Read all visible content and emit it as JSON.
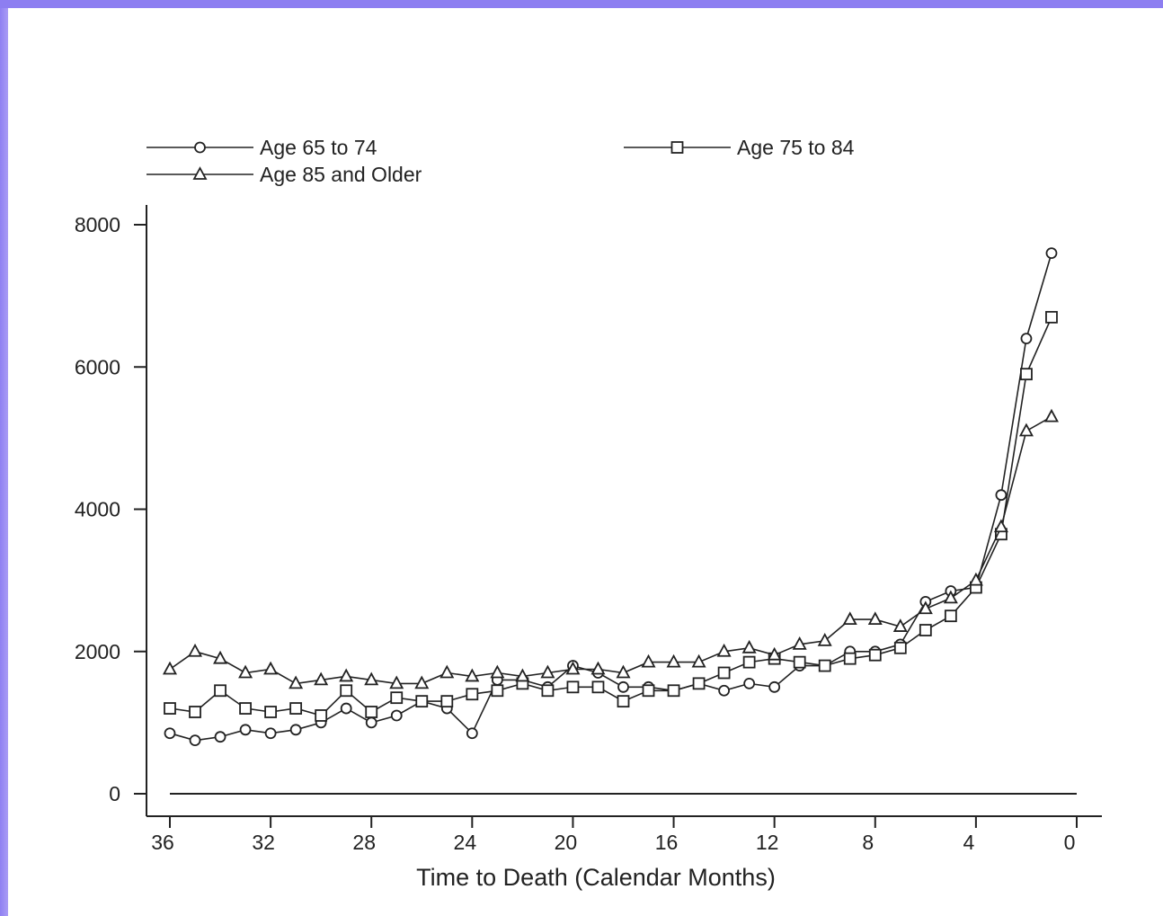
{
  "colors": {
    "frame_accent": "#8d7ef1",
    "background": "#ffffff",
    "ink": "#222222"
  },
  "chart_data": {
    "type": "line",
    "title": "",
    "xlabel": "Time to Death (Calendar Months)",
    "ylabel": "",
    "xlim": [
      36,
      0
    ],
    "ylim": [
      0,
      8000
    ],
    "x_reversed": true,
    "grid": false,
    "legend_position": "top",
    "xticks": [
      "36",
      "32",
      "28",
      "24",
      "20",
      "16",
      "12",
      "8",
      "4",
      "0"
    ],
    "yticks": [
      "8000",
      "6000",
      "4000",
      "2000",
      "0"
    ],
    "x": [
      36,
      35,
      34,
      33,
      32,
      31,
      30,
      29,
      28,
      27,
      26,
      25,
      24,
      23,
      22,
      21,
      20,
      19,
      18,
      17,
      16,
      15,
      14,
      13,
      12,
      11,
      10,
      9,
      8,
      7,
      6,
      5,
      4,
      3,
      2,
      1
    ],
    "series": [
      {
        "name": "Age 65 to 74",
        "marker": "circle",
        "values": [
          850,
          750,
          800,
          900,
          850,
          900,
          1000,
          1200,
          1000,
          1100,
          1300,
          1200,
          850,
          1600,
          1600,
          1500,
          1800,
          1700,
          1500,
          1500,
          1450,
          1550,
          1450,
          1550,
          1500,
          1800,
          1800,
          2000,
          2000,
          2100,
          2700,
          2850,
          2900,
          4200,
          6400,
          7600
        ]
      },
      {
        "name": "Age 75 to 84",
        "marker": "square",
        "values": [
          1200,
          1150,
          1450,
          1200,
          1150,
          1200,
          1100,
          1450,
          1150,
          1350,
          1300,
          1300,
          1400,
          1450,
          1550,
          1450,
          1500,
          1500,
          1300,
          1450,
          1450,
          1550,
          1700,
          1850,
          1900,
          1850,
          1800,
          1900,
          1950,
          2050,
          2300,
          2500,
          2900,
          3650,
          5900,
          6700
        ]
      },
      {
        "name": "Age 85 and Older",
        "marker": "triangle",
        "values": [
          1750,
          2000,
          1900,
          1700,
          1750,
          1550,
          1600,
          1650,
          1600,
          1550,
          1550,
          1700,
          1650,
          1700,
          1650,
          1700,
          1750,
          1750,
          1700,
          1850,
          1850,
          1850,
          2000,
          2050,
          1950,
          2100,
          2150,
          2450,
          2450,
          2350,
          2600,
          2750,
          3000,
          3750,
          5100,
          5300
        ]
      }
    ]
  }
}
